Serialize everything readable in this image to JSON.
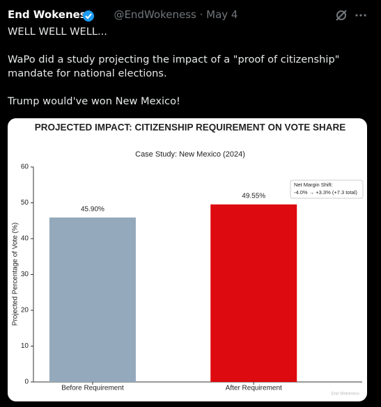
{
  "tweet": {
    "name": "End Wokeness",
    "meta": "@EndWokeness · May 4",
    "paragraphs": [
      "WELL WELL WELL...",
      "WaPo did a study projecting the impact of a \"proof of citizenship\" mandate for national elections.",
      "Trump would've won New Mexico!"
    ]
  },
  "chart_data": {
    "type": "bar",
    "title": "PROJECTED IMPACT: CITIZENSHIP REQUIREMENT ON VOTE SHARE",
    "subtitle": "Case Study: New Mexico (2024)",
    "y_label": "Projected Percentage of Vote (%)",
    "categories": [
      "Before Requirement",
      "After Requirement"
    ],
    "values": [
      45.9,
      49.55
    ],
    "value_labels": [
      "45.90%",
      "49.55%"
    ],
    "colors": [
      "#94a9bb",
      "#dd0a10"
    ],
    "ylim": [
      0,
      60
    ],
    "yticks": [
      0,
      10,
      20,
      30,
      40,
      50,
      60
    ],
    "annotation": [
      "Net Margin Shift:",
      "-4.0% → +3.3% (+7.3 total)"
    ],
    "watermark": "End Wokeness"
  }
}
